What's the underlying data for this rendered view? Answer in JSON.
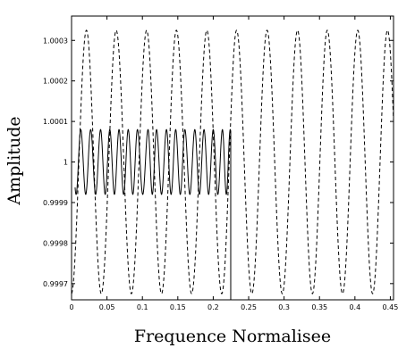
{
  "chart_data": {
    "type": "line",
    "title": "",
    "xlabel": "Frequence Normalisee",
    "ylabel": "Amplitude",
    "xlim": [
      0,
      0.4545
    ],
    "ylim": [
      0.99966,
      1.00036
    ],
    "xticks": [
      0,
      0.05,
      0.1,
      0.15,
      0.2,
      0.25,
      0.3,
      0.35,
      0.4,
      0.45
    ],
    "xtick_labels": [
      "0",
      "0.05",
      "0.1",
      "0.15",
      "0.2",
      "0.25",
      "0.3",
      "0.35",
      "0.4",
      "0.45"
    ],
    "yticks": [
      0.9997,
      0.9998,
      0.9999,
      1,
      1.0001,
      1.0002,
      1.0003
    ],
    "ytick_labels": [
      "0.9997",
      "0.9998",
      "0.9999",
      "1",
      "1.0001",
      "1.0002",
      "1.0003"
    ],
    "grid": false,
    "legend": false,
    "series": [
      {
        "style": "solid",
        "color": "#000000",
        "x_range": [
          0.005,
          0.2247
        ],
        "center": 1.0,
        "amplitude": 8e-05,
        "peaks_x": [
          0.013,
          0.027,
          0.041,
          0.054,
          0.067,
          0.08,
          0.093,
          0.108,
          0.12,
          0.134,
          0.147,
          0.16,
          0.174,
          0.187,
          0.2,
          0.213,
          0.224
        ]
      },
      {
        "style": "dashed",
        "color": "#000000",
        "x_range": [
          0.0,
          0.4545
        ],
        "center": 1.0,
        "amplitude": 0.000325,
        "peaks_x": [
          0.021,
          0.063,
          0.106,
          0.148,
          0.191,
          0.233,
          0.276,
          0.319,
          0.361,
          0.404,
          0.446
        ]
      }
    ]
  }
}
